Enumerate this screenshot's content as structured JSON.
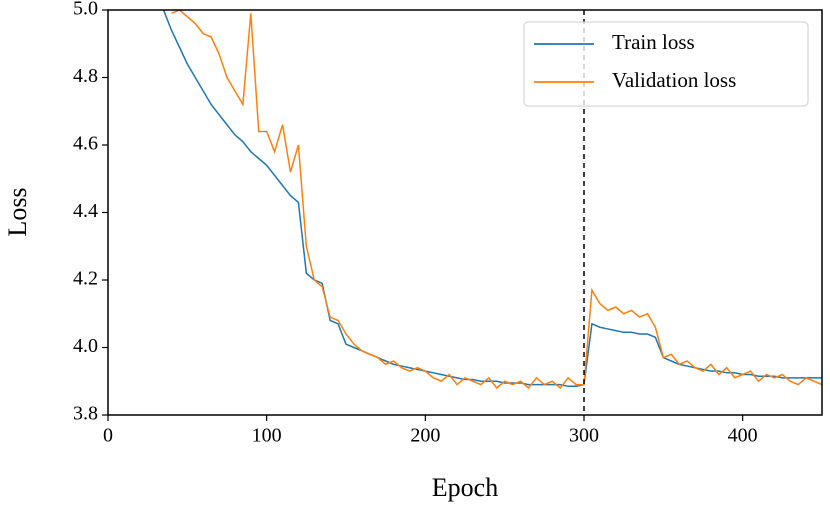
{
  "chart_data": {
    "type": "line",
    "x_label": "Epoch",
    "y_label": "Loss",
    "x": [
      35,
      40,
      45,
      50,
      55,
      60,
      65,
      70,
      75,
      80,
      85,
      90,
      95,
      100,
      105,
      110,
      115,
      120,
      125,
      130,
      135,
      140,
      145,
      150,
      155,
      160,
      165,
      170,
      175,
      180,
      185,
      190,
      195,
      200,
      205,
      210,
      215,
      220,
      225,
      230,
      235,
      240,
      245,
      250,
      255,
      260,
      265,
      270,
      275,
      280,
      285,
      290,
      295,
      300,
      305,
      310,
      315,
      320,
      325,
      330,
      335,
      340,
      345,
      350,
      355,
      360,
      365,
      370,
      375,
      380,
      385,
      390,
      395,
      400,
      405,
      410,
      415,
      420,
      425,
      430,
      435,
      440,
      445,
      450
    ],
    "series": [
      {
        "name": "Train loss",
        "color": "#1f77b4",
        "values": [
          5.0,
          4.94,
          4.89,
          4.84,
          4.8,
          4.76,
          4.72,
          4.69,
          4.66,
          4.63,
          4.61,
          4.58,
          4.56,
          4.54,
          4.51,
          4.48,
          4.45,
          4.43,
          4.22,
          4.2,
          4.19,
          4.08,
          4.07,
          4.01,
          4.0,
          3.99,
          3.98,
          3.97,
          3.96,
          3.95,
          3.945,
          3.94,
          3.935,
          3.93,
          3.925,
          3.92,
          3.915,
          3.91,
          3.905,
          3.905,
          3.9,
          3.9,
          3.9,
          3.895,
          3.895,
          3.895,
          3.89,
          3.89,
          3.89,
          3.89,
          3.89,
          3.885,
          3.885,
          3.89,
          4.07,
          4.06,
          4.055,
          4.05,
          4.045,
          4.045,
          4.04,
          4.04,
          4.03,
          3.97,
          3.96,
          3.95,
          3.945,
          3.94,
          3.935,
          3.93,
          3.93,
          3.925,
          3.925,
          3.92,
          3.92,
          3.915,
          3.915,
          3.915,
          3.91,
          3.91,
          3.91,
          3.91,
          3.91,
          3.91
        ]
      },
      {
        "name": "Validation loss",
        "color": "#ff7f0e",
        "values": [
          null,
          4.99,
          5.0,
          4.98,
          4.96,
          4.93,
          4.92,
          4.87,
          4.8,
          4.76,
          4.72,
          4.99,
          4.64,
          4.64,
          4.58,
          4.66,
          4.52,
          4.6,
          4.3,
          4.2,
          4.18,
          4.09,
          4.08,
          4.04,
          4.01,
          3.99,
          3.98,
          3.97,
          3.95,
          3.96,
          3.94,
          3.93,
          3.94,
          3.93,
          3.91,
          3.9,
          3.92,
          3.89,
          3.91,
          3.9,
          3.89,
          3.91,
          3.88,
          3.9,
          3.89,
          3.9,
          3.88,
          3.91,
          3.89,
          3.9,
          3.88,
          3.91,
          3.89,
          3.89,
          4.17,
          4.13,
          4.11,
          4.12,
          4.1,
          4.11,
          4.09,
          4.1,
          4.06,
          3.97,
          3.98,
          3.95,
          3.96,
          3.94,
          3.93,
          3.95,
          3.92,
          3.94,
          3.91,
          3.92,
          3.93,
          3.9,
          3.92,
          3.91,
          3.92,
          3.9,
          3.89,
          3.91,
          3.9,
          3.89
        ]
      }
    ],
    "vline": 300,
    "xlim": [
      0,
      450
    ],
    "ylim": [
      3.8,
      5.0
    ],
    "xticks": [
      0,
      100,
      200,
      300,
      400
    ],
    "yticks": [
      3.8,
      {
        "value": 4.0,
        "label": "4.0"
      },
      4.2,
      4.4,
      4.6,
      4.8,
      {
        "value": 5.0,
        "label": "5.0"
      }
    ],
    "legend": "upper right"
  }
}
